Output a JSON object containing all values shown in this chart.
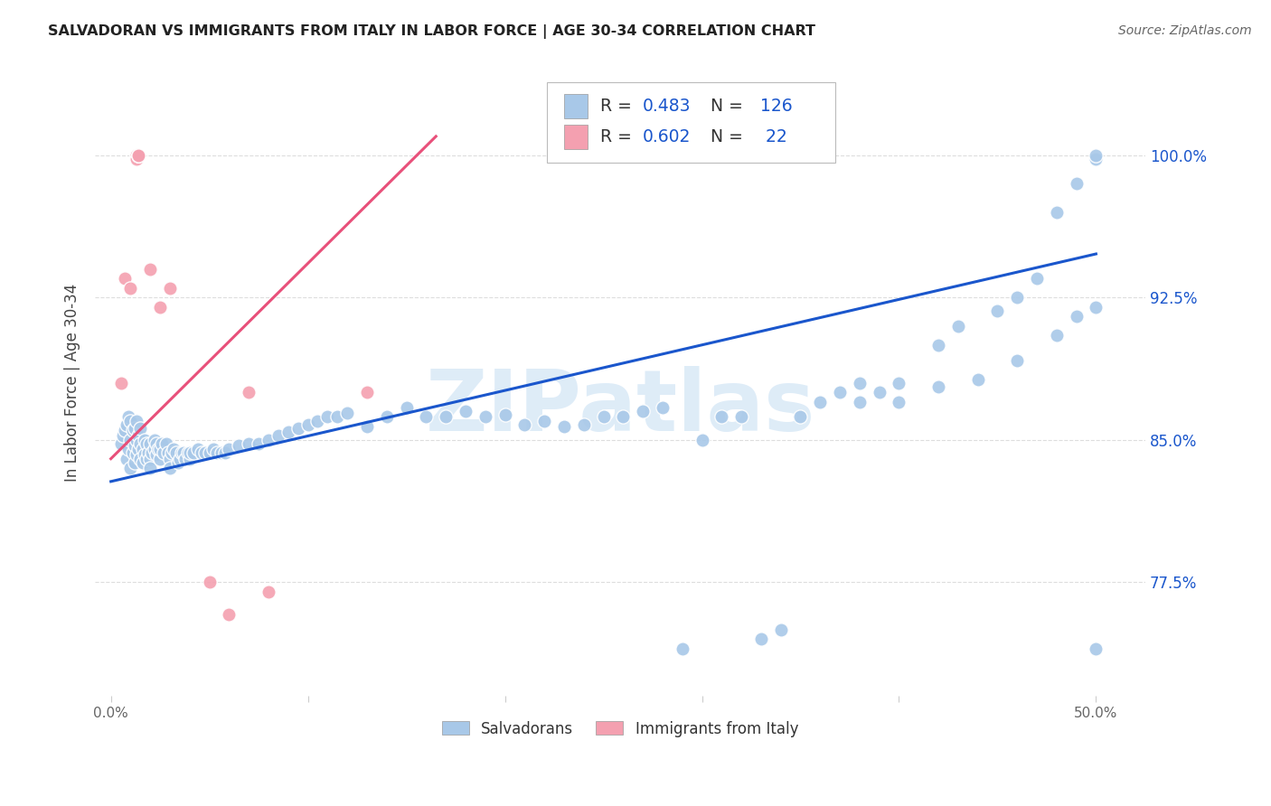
{
  "title": "SALVADORAN VS IMMIGRANTS FROM ITALY IN LABOR FORCE | AGE 30-34 CORRELATION CHART",
  "source": "Source: ZipAtlas.com",
  "ylabel": "In Labor Force | Age 30-34",
  "y_ticks": [
    0.775,
    0.85,
    0.925,
    1.0
  ],
  "y_tick_labels": [
    "77.5%",
    "85.0%",
    "92.5%",
    "100.0%"
  ],
  "x_tick_positions": [
    0.0,
    0.1,
    0.2,
    0.3,
    0.4,
    0.5
  ],
  "x_tick_labels": [
    "0.0%",
    "",
    "",
    "",
    "",
    "50.0%"
  ],
  "blue_color": "#a8c8e8",
  "pink_color": "#f4a0b0",
  "blue_line_color": "#1a56cc",
  "pink_line_color": "#e8507a",
  "blue_N": 126,
  "pink_N": 22,
  "blue_R": "0.483",
  "pink_R": "0.602",
  "blue_scatter_x": [
    0.005,
    0.006,
    0.007,
    0.008,
    0.008,
    0.009,
    0.009,
    0.01,
    0.01,
    0.01,
    0.011,
    0.011,
    0.012,
    0.012,
    0.012,
    0.013,
    0.013,
    0.013,
    0.014,
    0.014,
    0.015,
    0.015,
    0.015,
    0.016,
    0.016,
    0.017,
    0.017,
    0.018,
    0.018,
    0.019,
    0.02,
    0.02,
    0.02,
    0.021,
    0.022,
    0.022,
    0.023,
    0.023,
    0.024,
    0.025,
    0.025,
    0.026,
    0.027,
    0.028,
    0.029,
    0.03,
    0.03,
    0.031,
    0.032,
    0.033,
    0.034,
    0.035,
    0.036,
    0.037,
    0.038,
    0.039,
    0.04,
    0.04,
    0.042,
    0.044,
    0.046,
    0.048,
    0.05,
    0.052,
    0.054,
    0.056,
    0.058,
    0.06,
    0.065,
    0.07,
    0.075,
    0.08,
    0.085,
    0.09,
    0.095,
    0.1,
    0.105,
    0.11,
    0.115,
    0.12,
    0.13,
    0.14,
    0.15,
    0.16,
    0.17,
    0.18,
    0.19,
    0.2,
    0.21,
    0.22,
    0.23,
    0.24,
    0.25,
    0.26,
    0.27,
    0.28,
    0.29,
    0.3,
    0.31,
    0.32,
    0.33,
    0.34,
    0.35,
    0.36,
    0.37,
    0.38,
    0.39,
    0.4,
    0.42,
    0.44,
    0.46,
    0.48,
    0.49,
    0.5,
    0.5,
    0.5,
    0.38,
    0.4,
    0.42,
    0.43,
    0.45,
    0.46,
    0.47,
    0.48,
    0.49,
    0.5
  ],
  "blue_scatter_y": [
    0.848,
    0.852,
    0.855,
    0.84,
    0.858,
    0.845,
    0.862,
    0.835,
    0.85,
    0.86,
    0.843,
    0.855,
    0.838,
    0.847,
    0.856,
    0.842,
    0.85,
    0.86,
    0.845,
    0.852,
    0.84,
    0.848,
    0.856,
    0.838,
    0.845,
    0.842,
    0.85,
    0.84,
    0.848,
    0.843,
    0.84,
    0.848,
    0.835,
    0.843,
    0.845,
    0.85,
    0.842,
    0.848,
    0.845,
    0.84,
    0.845,
    0.848,
    0.843,
    0.848,
    0.843,
    0.84,
    0.835,
    0.843,
    0.845,
    0.843,
    0.838,
    0.84,
    0.843,
    0.843,
    0.84,
    0.843,
    0.84,
    0.843,
    0.843,
    0.845,
    0.843,
    0.843,
    0.843,
    0.845,
    0.843,
    0.843,
    0.843,
    0.845,
    0.847,
    0.848,
    0.848,
    0.85,
    0.852,
    0.854,
    0.856,
    0.858,
    0.86,
    0.862,
    0.862,
    0.864,
    0.857,
    0.862,
    0.867,
    0.862,
    0.862,
    0.865,
    0.862,
    0.863,
    0.858,
    0.86,
    0.857,
    0.858,
    0.862,
    0.862,
    0.865,
    0.867,
    0.74,
    0.85,
    0.862,
    0.862,
    0.745,
    0.75,
    0.862,
    0.87,
    0.875,
    0.88,
    0.875,
    0.87,
    0.878,
    0.882,
    0.892,
    0.905,
    0.915,
    0.92,
    0.998,
    1.0,
    0.87,
    0.88,
    0.9,
    0.91,
    0.918,
    0.925,
    0.935,
    0.97,
    0.985,
    0.74
  ],
  "pink_scatter_x": [
    0.005,
    0.007,
    0.01,
    0.013,
    0.013,
    0.013,
    0.013,
    0.013,
    0.013,
    0.013,
    0.014,
    0.014,
    0.014,
    0.014,
    0.02,
    0.025,
    0.03,
    0.05,
    0.06,
    0.07,
    0.08,
    0.13
  ],
  "pink_scatter_y": [
    0.88,
    0.935,
    0.93,
    1.0,
    1.0,
    1.0,
    1.0,
    1.0,
    1.0,
    0.998,
    1.0,
    1.0,
    1.0,
    1.0,
    0.94,
    0.92,
    0.93,
    0.775,
    0.758,
    0.875,
    0.77,
    0.875
  ],
  "blue_trend_x": [
    0.0,
    0.5
  ],
  "blue_trend_y": [
    0.828,
    0.948
  ],
  "pink_trend_x": [
    0.0,
    0.165
  ],
  "pink_trend_y": [
    0.84,
    1.01
  ],
  "xlim": [
    -0.008,
    0.525
  ],
  "ylim": [
    0.715,
    1.045
  ],
  "grid_color": "#dddddd",
  "title_color": "#222222",
  "axis_label_color": "#444444",
  "tick_color_right": "#1a56cc",
  "bg_color": "#ffffff",
  "watermark": "ZIPatlas",
  "watermark_color": "#d0e4f5",
  "legend_bottom_items": [
    "Salvadorans",
    "Immigrants from Italy"
  ]
}
